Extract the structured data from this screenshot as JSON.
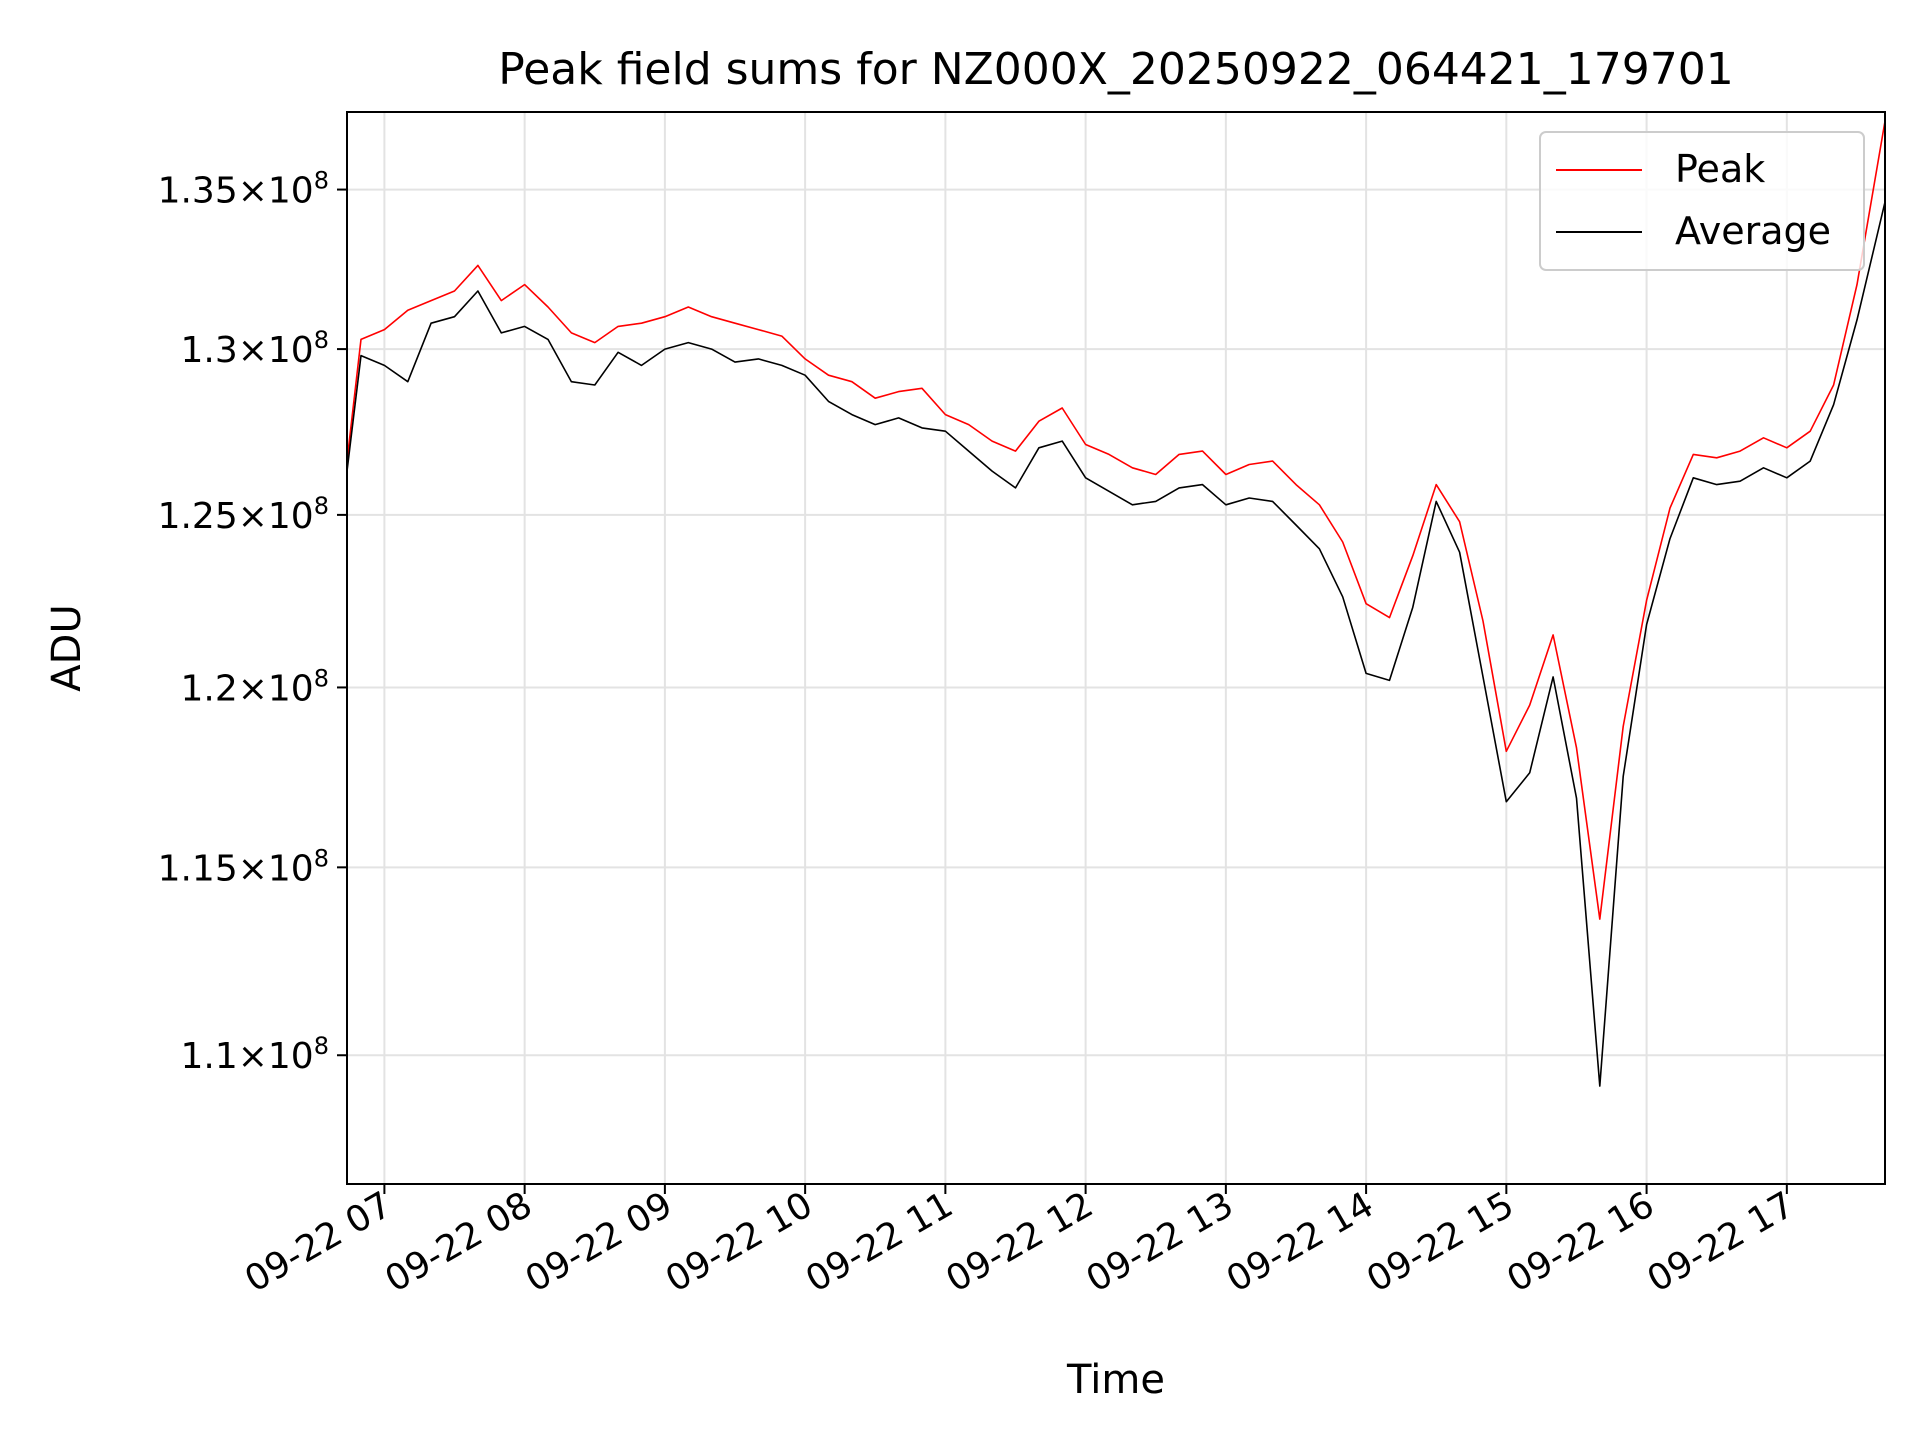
{
  "chart_data": {
    "type": "line",
    "title": "Peak field sums for NZ000X_20250922_064421_179701",
    "xlabel": "Time",
    "ylabel": "ADU",
    "x_range": [
      "2025-09-22 06:44",
      "2025-09-22 17:42"
    ],
    "ylim": [
      106700000,
      137500000
    ],
    "y_scale": "log",
    "grid": true,
    "legend_position": "top-right",
    "x_ticks": [
      {
        "label": "09-22 07",
        "time": "2025-09-22 07:00"
      },
      {
        "label": "09-22 08",
        "time": "2025-09-22 08:00"
      },
      {
        "label": "09-22 09",
        "time": "2025-09-22 09:00"
      },
      {
        "label": "09-22 10",
        "time": "2025-09-22 10:00"
      },
      {
        "label": "09-22 11",
        "time": "2025-09-22 11:00"
      },
      {
        "label": "09-22 12",
        "time": "2025-09-22 12:00"
      },
      {
        "label": "09-22 13",
        "time": "2025-09-22 13:00"
      },
      {
        "label": "09-22 14",
        "time": "2025-09-22 14:00"
      },
      {
        "label": "09-22 15",
        "time": "2025-09-22 15:00"
      },
      {
        "label": "09-22 16",
        "time": "2025-09-22 16:00"
      },
      {
        "label": "09-22 17",
        "time": "2025-09-22 17:00"
      }
    ],
    "y_ticks": [
      {
        "value": 110000000,
        "mantissa": "1.1",
        "exponent": "8"
      },
      {
        "value": 115000000,
        "mantissa": "1.15",
        "exponent": "8"
      },
      {
        "value": 120000000,
        "mantissa": "1.2",
        "exponent": "8"
      },
      {
        "value": 125000000,
        "mantissa": "1.25",
        "exponent": "8"
      },
      {
        "value": 130000000,
        "mantissa": "1.3",
        "exponent": "8"
      },
      {
        "value": 135000000,
        "mantissa": "1.35",
        "exponent": "8"
      }
    ],
    "series": [
      {
        "name": "Peak",
        "color": "#ff0000",
        "x": [
          "2025-09-22 06:44",
          "2025-09-22 06:50",
          "2025-09-22 07:00",
          "2025-09-22 07:10",
          "2025-09-22 07:20",
          "2025-09-22 07:30",
          "2025-09-22 07:40",
          "2025-09-22 07:50",
          "2025-09-22 08:00",
          "2025-09-22 08:10",
          "2025-09-22 08:20",
          "2025-09-22 08:30",
          "2025-09-22 08:40",
          "2025-09-22 08:50",
          "2025-09-22 09:00",
          "2025-09-22 09:10",
          "2025-09-22 09:20",
          "2025-09-22 09:30",
          "2025-09-22 09:40",
          "2025-09-22 09:50",
          "2025-09-22 10:00",
          "2025-09-22 10:10",
          "2025-09-22 10:20",
          "2025-09-22 10:30",
          "2025-09-22 10:40",
          "2025-09-22 10:50",
          "2025-09-22 11:00",
          "2025-09-22 11:10",
          "2025-09-22 11:20",
          "2025-09-22 11:30",
          "2025-09-22 11:40",
          "2025-09-22 11:50",
          "2025-09-22 12:00",
          "2025-09-22 12:10",
          "2025-09-22 12:20",
          "2025-09-22 12:30",
          "2025-09-22 12:40",
          "2025-09-22 12:50",
          "2025-09-22 13:00",
          "2025-09-22 13:10",
          "2025-09-22 13:20",
          "2025-09-22 13:30",
          "2025-09-22 13:40",
          "2025-09-22 13:50",
          "2025-09-22 14:00",
          "2025-09-22 14:10",
          "2025-09-22 14:20",
          "2025-09-22 14:30",
          "2025-09-22 14:40",
          "2025-09-22 14:50",
          "2025-09-22 15:00",
          "2025-09-22 15:10",
          "2025-09-22 15:20",
          "2025-09-22 15:30",
          "2025-09-22 15:40",
          "2025-09-22 15:50",
          "2025-09-22 16:00",
          "2025-09-22 16:10",
          "2025-09-22 16:20",
          "2025-09-22 16:30",
          "2025-09-22 16:40",
          "2025-09-22 16:50",
          "2025-09-22 17:00",
          "2025-09-22 17:10",
          "2025-09-22 17:20",
          "2025-09-22 17:30",
          "2025-09-22 17:42"
        ],
        "values": [
          126600000,
          130300000,
          130600000,
          131200000,
          131500000,
          131800000,
          132600000,
          131500000,
          132000000,
          131300000,
          130500000,
          130200000,
          130700000,
          130800000,
          131000000,
          131300000,
          131000000,
          130800000,
          130600000,
          130400000,
          129700000,
          129200000,
          129000000,
          128500000,
          128700000,
          128800000,
          128000000,
          127700000,
          127200000,
          126900000,
          127800000,
          128200000,
          127100000,
          126800000,
          126400000,
          126200000,
          126800000,
          126900000,
          126200000,
          126500000,
          126600000,
          125900000,
          125300000,
          124200000,
          122400000,
          122000000,
          123800000,
          125900000,
          124800000,
          121900000,
          118200000,
          119500000,
          121500000,
          118300000,
          113600000,
          118900000,
          122500000,
          125200000,
          126800000,
          126700000,
          126900000,
          127300000,
          127000000,
          127500000,
          128900000,
          132000000,
          137200000
        ]
      },
      {
        "name": "Average",
        "color": "#000000",
        "x": [
          "2025-09-22 06:44",
          "2025-09-22 06:50",
          "2025-09-22 07:00",
          "2025-09-22 07:10",
          "2025-09-22 07:20",
          "2025-09-22 07:30",
          "2025-09-22 07:40",
          "2025-09-22 07:50",
          "2025-09-22 08:00",
          "2025-09-22 08:10",
          "2025-09-22 08:20",
          "2025-09-22 08:30",
          "2025-09-22 08:40",
          "2025-09-22 08:50",
          "2025-09-22 09:00",
          "2025-09-22 09:10",
          "2025-09-22 09:20",
          "2025-09-22 09:30",
          "2025-09-22 09:40",
          "2025-09-22 09:50",
          "2025-09-22 10:00",
          "2025-09-22 10:10",
          "2025-09-22 10:20",
          "2025-09-22 10:30",
          "2025-09-22 10:40",
          "2025-09-22 10:50",
          "2025-09-22 11:00",
          "2025-09-22 11:10",
          "2025-09-22 11:20",
          "2025-09-22 11:30",
          "2025-09-22 11:40",
          "2025-09-22 11:50",
          "2025-09-22 12:00",
          "2025-09-22 12:10",
          "2025-09-22 12:20",
          "2025-09-22 12:30",
          "2025-09-22 12:40",
          "2025-09-22 12:50",
          "2025-09-22 13:00",
          "2025-09-22 13:10",
          "2025-09-22 13:20",
          "2025-09-22 13:30",
          "2025-09-22 13:40",
          "2025-09-22 13:50",
          "2025-09-22 14:00",
          "2025-09-22 14:10",
          "2025-09-22 14:20",
          "2025-09-22 14:30",
          "2025-09-22 14:40",
          "2025-09-22 14:50",
          "2025-09-22 15:00",
          "2025-09-22 15:10",
          "2025-09-22 15:20",
          "2025-09-22 15:30",
          "2025-09-22 15:40",
          "2025-09-22 15:50",
          "2025-09-22 16:00",
          "2025-09-22 16:10",
          "2025-09-22 16:20",
          "2025-09-22 16:30",
          "2025-09-22 16:40",
          "2025-09-22 16:50",
          "2025-09-22 17:00",
          "2025-09-22 17:10",
          "2025-09-22 17:20",
          "2025-09-22 17:30",
          "2025-09-22 17:42"
        ],
        "values": [
          126300000,
          129800000,
          129500000,
          129000000,
          130800000,
          131000000,
          131800000,
          130500000,
          130700000,
          130300000,
          129000000,
          128900000,
          129900000,
          129500000,
          130000000,
          130200000,
          130000000,
          129600000,
          129700000,
          129500000,
          129200000,
          128400000,
          128000000,
          127700000,
          127900000,
          127600000,
          127500000,
          126900000,
          126300000,
          125800000,
          127000000,
          127200000,
          126100000,
          125700000,
          125300000,
          125400000,
          125800000,
          125900000,
          125300000,
          125500000,
          125400000,
          124700000,
          124000000,
          122600000,
          120400000,
          120200000,
          122300000,
          125400000,
          123900000,
          120300000,
          116800000,
          117600000,
          120300000,
          116900000,
          109200000,
          117500000,
          121800000,
          124300000,
          126100000,
          125900000,
          126000000,
          126400000,
          126100000,
          126600000,
          128300000,
          130900000,
          134600000
        ]
      }
    ]
  }
}
